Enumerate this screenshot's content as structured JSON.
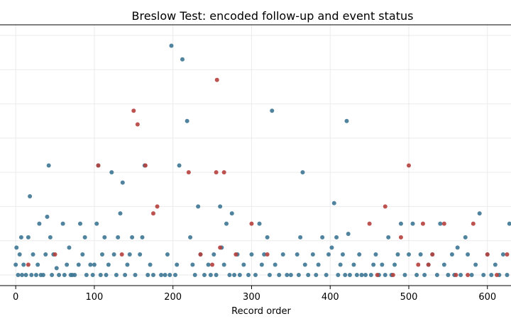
{
  "chart_data": {
    "type": "scatter",
    "title": "Breslow Test: encoded follow-up and event status",
    "xlabel": "Record order",
    "ylabel": "",
    "xlim": [
      -20,
      630
    ],
    "ylim": [
      0,
      70
    ],
    "xticks": [
      0,
      100,
      200,
      300,
      400,
      500,
      600
    ],
    "grid": true,
    "legend": "none",
    "colors": {
      "censored": "#3d7593",
      "event": "#b5403d"
    },
    "series": [
      {
        "status": "censored",
        "x": [
          0,
          1,
          3,
          5,
          7,
          8,
          10,
          13,
          16,
          18,
          20,
          22,
          26,
          28,
          30,
          32,
          35,
          38,
          40,
          42,
          44,
          46,
          48,
          52,
          55,
          60,
          62,
          65,
          68,
          70,
          72,
          75,
          80,
          82,
          85,
          88,
          90,
          95,
          98,
          100,
          103,
          105,
          108,
          110,
          113,
          115,
          118,
          122,
          125,
          128,
          130,
          133,
          136,
          139,
          142,
          145,
          148,
          152,
          158,
          161,
          164,
          168,
          171,
          175,
          185,
          190,
          193,
          196,
          198,
          203,
          205,
          208,
          212,
          218,
          222,
          225,
          228,
          232,
          235,
          240,
          245,
          248,
          252,
          255,
          260,
          262,
          265,
          268,
          272,
          275,
          278,
          282,
          285,
          290,
          296,
          300,
          305,
          310,
          313,
          316,
          320,
          323,
          326,
          330,
          335,
          340,
          345,
          350,
          358,
          360,
          362,
          365,
          368,
          372,
          378,
          382,
          385,
          390,
          395,
          398,
          402,
          405,
          408,
          410,
          413,
          416,
          419,
          421,
          423,
          425,
          430,
          434,
          437,
          440,
          445,
          452,
          455,
          458,
          462,
          466,
          470,
          474,
          478,
          482,
          486,
          490,
          495,
          500,
          505,
          510,
          515,
          520,
          525,
          530,
          536,
          540,
          545,
          550,
          555,
          558,
          562,
          566,
          572,
          575,
          580,
          585,
          590,
          595,
          600,
          605,
          610,
          615,
          620,
          625,
          628
        ],
        "y": [
          3,
          8,
          0,
          6,
          11,
          0,
          3,
          0,
          11,
          23,
          0,
          6,
          0,
          3,
          15,
          0,
          0,
          6,
          17,
          32,
          11,
          0,
          6,
          2,
          0,
          15,
          0,
          3,
          8,
          0,
          0,
          0,
          3,
          15,
          6,
          11,
          0,
          3,
          0,
          3,
          15,
          32,
          0,
          6,
          11,
          0,
          3,
          30,
          6,
          0,
          11,
          18,
          27,
          0,
          3,
          6,
          11,
          0,
          6,
          11,
          32,
          0,
          3,
          0,
          0,
          0,
          6,
          0,
          67,
          0,
          3,
          32,
          63,
          45,
          11,
          3,
          0,
          20,
          6,
          0,
          3,
          0,
          6,
          0,
          20,
          8,
          3,
          15,
          0,
          18,
          0,
          6,
          0,
          3,
          0,
          6,
          0,
          15,
          3,
          6,
          11,
          0,
          48,
          3,
          0,
          6,
          0,
          0,
          6,
          0,
          11,
          30,
          3,
          0,
          6,
          0,
          3,
          11,
          0,
          6,
          8,
          21,
          11,
          0,
          3,
          6,
          0,
          45,
          12,
          0,
          3,
          0,
          6,
          0,
          0,
          0,
          3,
          6,
          0,
          3,
          0,
          11,
          0,
          3,
          6,
          15,
          0,
          6,
          15,
          0,
          6,
          0,
          3,
          6,
          0,
          15,
          3,
          0,
          6,
          0,
          8,
          0,
          11,
          6,
          0,
          3,
          18,
          0,
          6,
          0,
          3,
          0,
          6,
          0,
          15
        ],
        "point_color": "#3d7593"
      },
      {
        "status": "event",
        "x": [
          16,
          50,
          105,
          135,
          150,
          155,
          165,
          175,
          180,
          220,
          235,
          250,
          255,
          256,
          260,
          265,
          280,
          300,
          320,
          450,
          460,
          470,
          480,
          490,
          500,
          512,
          518,
          525,
          530,
          545,
          560,
          575,
          582,
          600,
          612,
          625
        ],
        "y": [
          3,
          6,
          32,
          6,
          48,
          44,
          32,
          18,
          20,
          30,
          6,
          3,
          30,
          57,
          8,
          30,
          6,
          15,
          6,
          15,
          0,
          20,
          0,
          11,
          32,
          3,
          15,
          3,
          6,
          15,
          0,
          0,
          15,
          6,
          0,
          6
        ],
        "point_color": "#b5403d"
      }
    ]
  }
}
